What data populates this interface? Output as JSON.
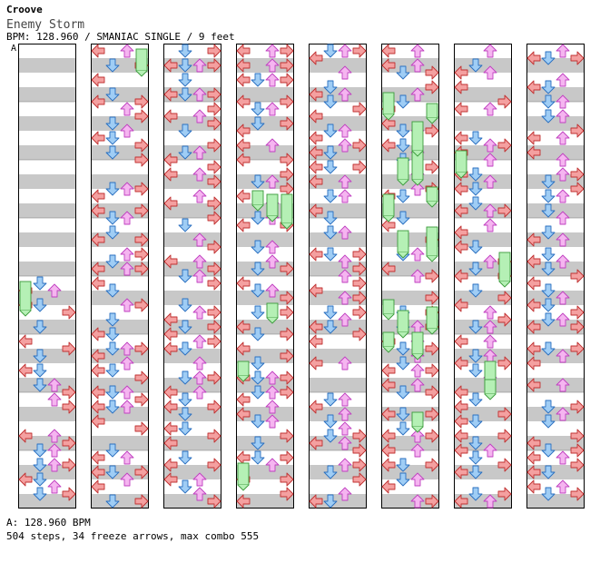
{
  "header": {
    "artist": "Croove",
    "title": "Enemy Storm",
    "bpm_line": "BPM: 128.960 / SMANIAC SINGLE / 9 feet",
    "segment_marker": "A"
  },
  "footer": {
    "bpm_info": "A: 128.960 BPM",
    "summary": "504 steps, 34 freeze arrows, max combo 555"
  },
  "stats": {
    "steps": 504,
    "freeze_arrows": 34,
    "max_combo": 555,
    "bpm": 128.96,
    "feet": 9,
    "difficulty": "SMANIAC SINGLE"
  },
  "colors": {
    "left": "#f4a0a0",
    "down": "#9fcdf5",
    "up": "#f5b5f0",
    "right": "#f4a0a0",
    "freeze": "#b5f0b5",
    "stripe": "#c8c8c8",
    "border": "#000000"
  },
  "chart_data": {
    "type": "table",
    "columns": 8,
    "measures_per_column": 8,
    "lanes": [
      "left",
      "down",
      "up",
      "right"
    ],
    "note_counts_by_column": [
      30,
      68,
      70,
      70,
      66,
      68,
      66,
      66
    ]
  }
}
